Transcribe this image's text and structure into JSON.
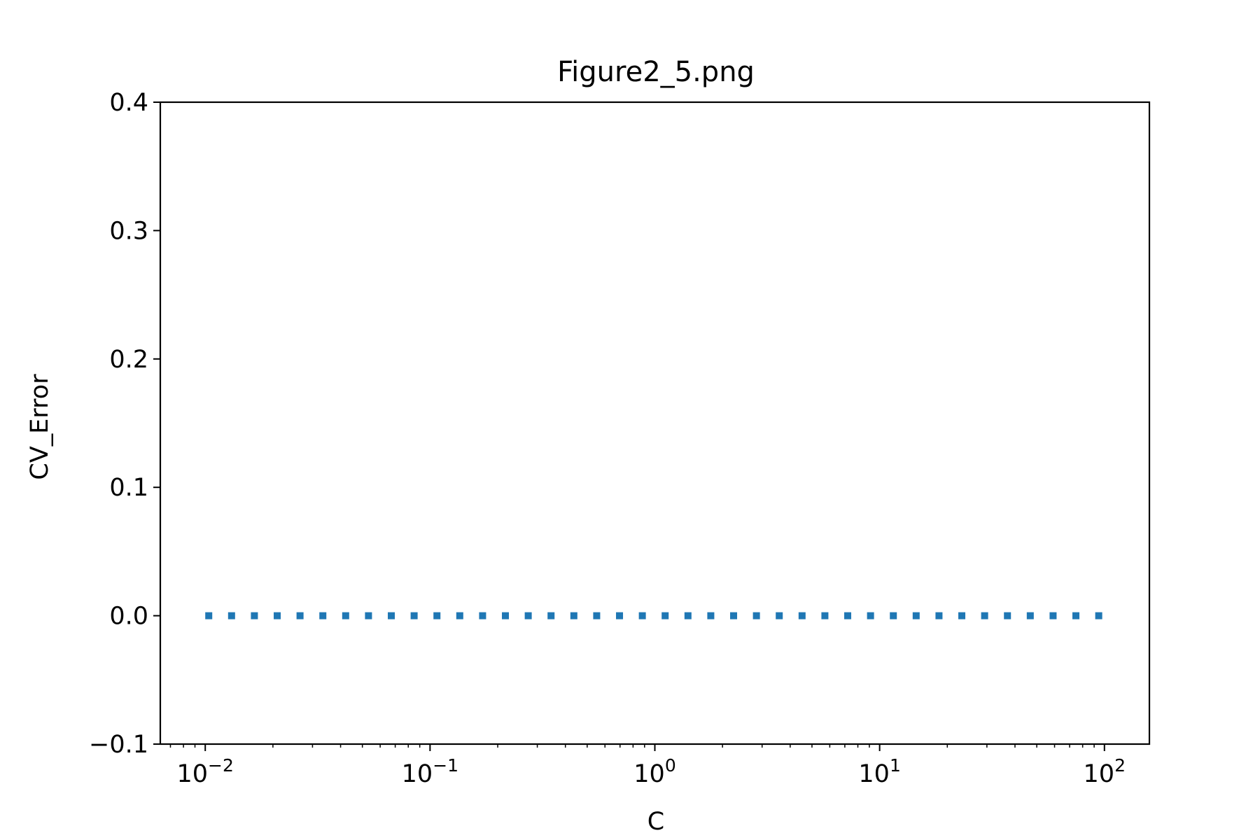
{
  "chart_data": {
    "type": "line",
    "title": "Figure2_5.png",
    "xlabel": "C",
    "ylabel": "CV_Error",
    "x_scale": "log",
    "xlim": [
      0.00631,
      158.49
    ],
    "ylim": [
      -0.1,
      0.4
    ],
    "grid": false,
    "legend": "none",
    "x_ticks": [
      {
        "value": 0.01,
        "base": "10",
        "exp": "−2"
      },
      {
        "value": 0.1,
        "base": "10",
        "exp": "−1"
      },
      {
        "value": 1,
        "base": "10",
        "exp": "0"
      },
      {
        "value": 10,
        "base": "10",
        "exp": "1"
      },
      {
        "value": 100,
        "base": "10",
        "exp": "2"
      }
    ],
    "y_ticks": [
      {
        "value": -0.1,
        "label": "−0.1"
      },
      {
        "value": 0.0,
        "label": "0.0"
      },
      {
        "value": 0.1,
        "label": "0.1"
      },
      {
        "value": 0.2,
        "label": "0.2"
      },
      {
        "value": 0.3,
        "label": "0.3"
      },
      {
        "value": 0.4,
        "label": "0.4"
      }
    ],
    "series": [
      {
        "color": "#1f77b4",
        "line_style": "dotted",
        "x": [
          0.01,
          100
        ],
        "values": [
          0.0,
          0.0
        ]
      }
    ]
  }
}
